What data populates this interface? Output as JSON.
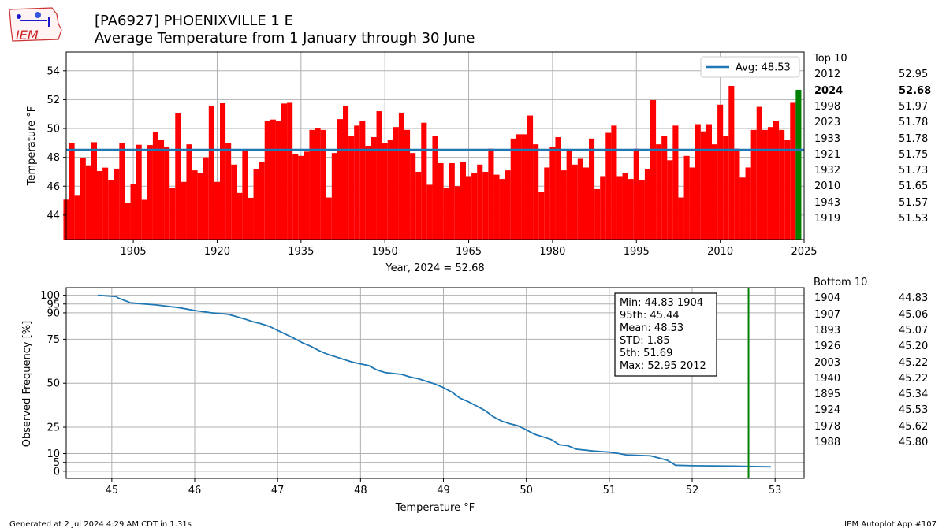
{
  "logo_text": "IEM",
  "title_line1": "[PA6927] PHOENIXVILLE 1 E",
  "title_line2": "Average Temperature from 1 January through 30 June",
  "colors": {
    "bar": "#ff0000",
    "bar_current": "#008000",
    "avg_line": "#1f77b4",
    "cdf_line": "#1f77b4",
    "current_line": "#008000",
    "grid": "#b0b0b0"
  },
  "top10": {
    "heading": "Top 10",
    "rows": [
      {
        "year": "2012",
        "value": "52.95"
      },
      {
        "year": "2024",
        "value": "52.68"
      },
      {
        "year": "1998",
        "value": "51.97"
      },
      {
        "year": "2023",
        "value": "51.78"
      },
      {
        "year": "1933",
        "value": "51.78"
      },
      {
        "year": "1921",
        "value": "51.75"
      },
      {
        "year": "1932",
        "value": "51.73"
      },
      {
        "year": "2010",
        "value": "51.65"
      },
      {
        "year": "1943",
        "value": "51.57"
      },
      {
        "year": "1919",
        "value": "51.53"
      }
    ]
  },
  "bottom10": {
    "heading": "Bottom 10",
    "rows": [
      {
        "year": "1904",
        "value": "44.83"
      },
      {
        "year": "1907",
        "value": "45.06"
      },
      {
        "year": "1893",
        "value": "45.07"
      },
      {
        "year": "1926",
        "value": "45.20"
      },
      {
        "year": "2003",
        "value": "45.22"
      },
      {
        "year": "1940",
        "value": "45.22"
      },
      {
        "year": "1895",
        "value": "45.34"
      },
      {
        "year": "1924",
        "value": "45.53"
      },
      {
        "year": "1978",
        "value": "45.62"
      },
      {
        "year": "1988",
        "value": "45.80"
      }
    ]
  },
  "footer_left": "Generated at 2 Jul 2024 4:29 AM CDT in 1.31s",
  "footer_right": "IEM Autoplot App #107",
  "chart_data": [
    {
      "type": "bar",
      "ylabel": "Temperature $^\\circ$F",
      "xlabel": "Year, 2024 = 52.68",
      "xlim": [
        1893,
        2025
      ],
      "ylim": [
        42.3,
        55.3
      ],
      "xticks": [
        1905,
        1920,
        1935,
        1950,
        1965,
        1980,
        1995,
        2010,
        2025
      ],
      "yticks": [
        44,
        46,
        48,
        50,
        52,
        54
      ],
      "average": 48.53,
      "legend": "Avg: 48.53",
      "legend_position": "top-right",
      "highlight_year": 2024,
      "grid": true,
      "x": [
        1893,
        1894,
        1895,
        1896,
        1897,
        1898,
        1899,
        1900,
        1901,
        1902,
        1903,
        1904,
        1905,
        1906,
        1907,
        1908,
        1909,
        1910,
        1911,
        1912,
        1913,
        1914,
        1915,
        1916,
        1917,
        1918,
        1919,
        1920,
        1921,
        1922,
        1923,
        1924,
        1925,
        1926,
        1927,
        1928,
        1929,
        1930,
        1931,
        1932,
        1933,
        1934,
        1935,
        1936,
        1937,
        1938,
        1939,
        1940,
        1941,
        1942,
        1943,
        1944,
        1945,
        1946,
        1947,
        1948,
        1949,
        1950,
        1951,
        1952,
        1953,
        1954,
        1955,
        1956,
        1957,
        1958,
        1959,
        1960,
        1961,
        1962,
        1963,
        1964,
        1965,
        1966,
        1967,
        1968,
        1969,
        1970,
        1971,
        1972,
        1973,
        1974,
        1975,
        1976,
        1977,
        1978,
        1979,
        1980,
        1981,
        1982,
        1983,
        1984,
        1985,
        1986,
        1987,
        1988,
        1989,
        1990,
        1991,
        1992,
        1993,
        1994,
        1995,
        1996,
        1997,
        1998,
        1999,
        2000,
        2001,
        2002,
        2003,
        2004,
        2005,
        2006,
        2007,
        2008,
        2009,
        2010,
        2011,
        2012,
        2013,
        2014,
        2015,
        2016,
        2017,
        2018,
        2019,
        2020,
        2021,
        2022,
        2023,
        2024
      ],
      "values": [
        45.07,
        48.97,
        45.34,
        47.98,
        47.45,
        49.05,
        47.05,
        47.29,
        46.4,
        47.22,
        48.97,
        44.83,
        46.15,
        48.87,
        45.06,
        48.85,
        49.75,
        49.19,
        48.7,
        45.9,
        51.07,
        46.3,
        48.9,
        47.1,
        46.9,
        48.0,
        51.53,
        46.3,
        51.75,
        49.0,
        47.5,
        45.53,
        48.5,
        45.2,
        47.2,
        47.7,
        50.52,
        50.62,
        50.52,
        51.73,
        51.78,
        48.2,
        48.1,
        48.4,
        49.9,
        50.0,
        49.9,
        45.22,
        48.3,
        50.65,
        51.57,
        49.5,
        50.2,
        50.5,
        48.8,
        49.4,
        51.2,
        49.0,
        49.2,
        50.1,
        51.1,
        49.9,
        48.3,
        47.0,
        50.4,
        46.1,
        49.5,
        47.6,
        45.9,
        47.6,
        46.0,
        47.7,
        46.7,
        46.9,
        47.5,
        47.0,
        48.6,
        46.8,
        46.5,
        47.1,
        49.3,
        49.6,
        49.6,
        50.9,
        48.9,
        45.62,
        47.3,
        48.7,
        49.4,
        47.1,
        48.5,
        47.5,
        47.9,
        47.3,
        49.3,
        45.8,
        46.7,
        49.7,
        50.2,
        46.7,
        46.9,
        46.5,
        48.6,
        46.4,
        47.2,
        51.97,
        48.9,
        49.5,
        47.8,
        50.2,
        45.22,
        48.1,
        47.3,
        50.3,
        49.8,
        50.3,
        48.9,
        51.65,
        49.5,
        52.95,
        48.6,
        46.6,
        47.3,
        49.9,
        51.5,
        49.9,
        50.1,
        50.5,
        49.9,
        49.2,
        51.78,
        52.68
      ]
    },
    {
      "type": "line",
      "xlabel": "Temperature $^\\circ$F",
      "ylabel": "Observed Frequency [%]",
      "xlim": [
        44.45,
        53.35
      ],
      "ylim": [
        -4.1,
        104.3
      ],
      "xticks": [
        45,
        46,
        47,
        48,
        49,
        50,
        51,
        52,
        53
      ],
      "yticks": [
        0,
        5,
        10,
        25,
        50,
        75,
        90,
        95,
        100
      ],
      "current_value": 52.68,
      "grid": true,
      "stats": [
        "Min: 44.83 1904",
        "95th: 45.44",
        "Mean: 48.53",
        "STD: 1.85",
        "5th: 51.69",
        "Max: 52.95 2012"
      ],
      "x": [
        44.83,
        45.06,
        45.07,
        45.2,
        45.22,
        45.34,
        45.53,
        45.62,
        45.8,
        46.0,
        46.2,
        46.4,
        46.5,
        46.6,
        46.7,
        46.8,
        46.9,
        47.0,
        47.1,
        47.2,
        47.3,
        47.4,
        47.5,
        47.6,
        47.7,
        47.8,
        47.9,
        48.0,
        48.1,
        48.2,
        48.3,
        48.4,
        48.5,
        48.6,
        48.7,
        48.8,
        48.9,
        49.0,
        49.1,
        49.2,
        49.3,
        49.4,
        49.5,
        49.6,
        49.7,
        49.8,
        49.9,
        50.0,
        50.1,
        50.2,
        50.3,
        50.4,
        50.5,
        50.6,
        50.8,
        51.0,
        51.1,
        51.2,
        51.5,
        51.7,
        51.8,
        52.0,
        52.5,
        52.68,
        52.95
      ],
      "values": [
        100,
        99.2,
        98.5,
        96.2,
        95.7,
        95.2,
        94.5,
        94.0,
        93.0,
        91.3,
        90.0,
        89.2,
        87.9,
        86.5,
        85.0,
        83.8,
        82.3,
        80.0,
        77.8,
        75.5,
        73.0,
        71.0,
        68.5,
        66.5,
        65.0,
        63.5,
        62.0,
        61.0,
        60.0,
        57.5,
        56.0,
        55.5,
        55.0,
        53.5,
        52.5,
        51.0,
        49.5,
        47.5,
        45.0,
        41.5,
        39.5,
        37.0,
        34.5,
        31.0,
        28.5,
        27.0,
        25.8,
        23.5,
        21.0,
        19.5,
        18.0,
        15.0,
        14.5,
        12.5,
        11.5,
        10.8,
        10.2,
        9.3,
        8.7,
        6.2,
        3.4,
        3.1,
        2.9,
        2.7,
        2.5
      ]
    }
  ]
}
